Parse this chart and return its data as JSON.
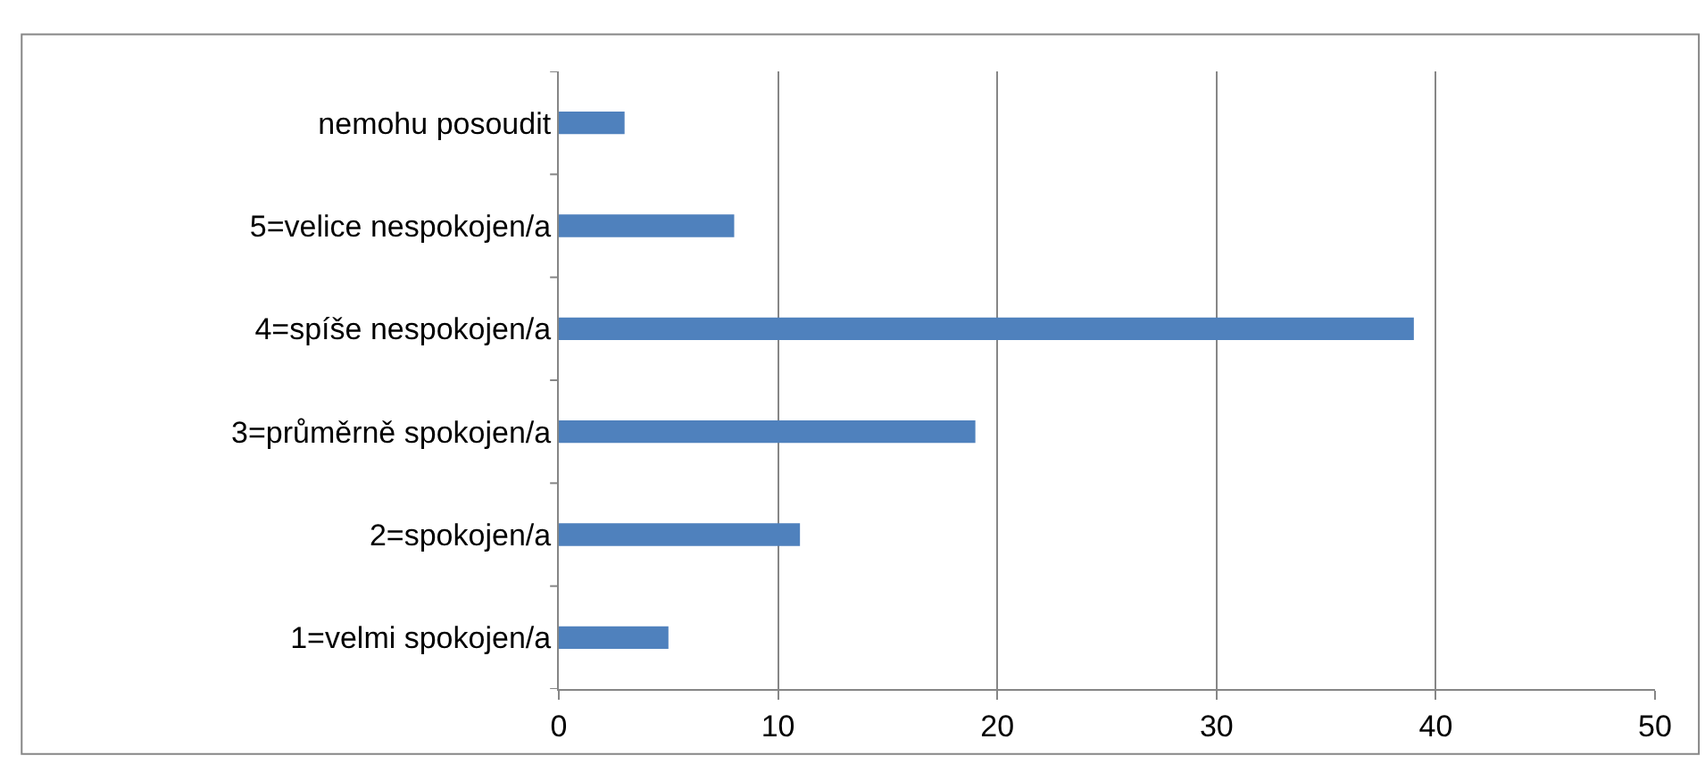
{
  "chart_data": {
    "type": "bar",
    "orientation": "horizontal",
    "categories": [
      "nemohu posoudit",
      "5=velice nespokojen/a",
      "4=spíše nespokojen/a",
      "3=průměrně spokojen/a",
      "2=spokojen/a",
      "1=velmi spokojen/a"
    ],
    "values": [
      3,
      8,
      39,
      19,
      11,
      5
    ],
    "color": "#4f81bd",
    "xlim": [
      0,
      50
    ],
    "xticks": [
      0,
      10,
      20,
      30,
      40,
      50
    ],
    "grid": "x"
  }
}
